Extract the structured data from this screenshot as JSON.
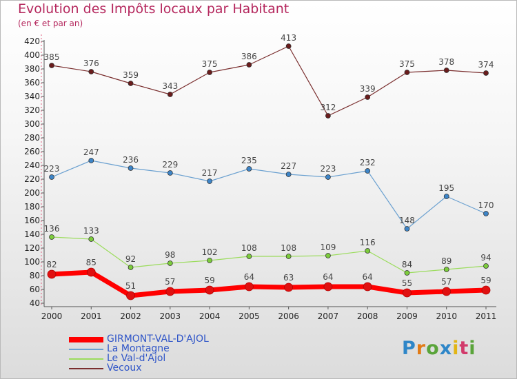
{
  "title": "Evolution des Impôts locaux par Habitant",
  "subtitle": "(en € et par an)",
  "logo": {
    "text": "Proxiti",
    "letters": [
      "P",
      "r",
      "o",
      "x",
      "i",
      "t",
      "i"
    ]
  },
  "chart_data": {
    "type": "line",
    "x": [
      "2000",
      "2001",
      "2002",
      "2003",
      "2004",
      "2005",
      "2006",
      "2007",
      "2008",
      "2009",
      "2010",
      "2011"
    ],
    "ylim": [
      40,
      420
    ],
    "yticks": [
      40,
      60,
      80,
      100,
      120,
      140,
      160,
      180,
      200,
      220,
      240,
      260,
      280,
      300,
      320,
      340,
      360,
      380,
      400,
      420
    ],
    "grid": false,
    "legend_position": "bottom-left",
    "series": [
      {
        "name": "GIRMONT-VAL-D'AJOL",
        "color": "#ff0000",
        "point_color": "#e01010",
        "width": 7,
        "values": [
          82,
          85,
          51,
          57,
          59,
          64,
          63,
          64,
          64,
          55,
          57,
          59
        ]
      },
      {
        "name": "La Montagne",
        "color": "#6aa0d0",
        "point_color": "#3d85c8",
        "width": 1.2,
        "values": [
          223,
          247,
          236,
          229,
          217,
          235,
          227,
          223,
          232,
          148,
          195,
          170
        ]
      },
      {
        "name": "Le Val-d'Ajol",
        "color": "#9bdc5c",
        "point_color": "#7ccc3c",
        "width": 1.2,
        "values": [
          136,
          133,
          92,
          98,
          102,
          108,
          108,
          109,
          116,
          84,
          89,
          94
        ]
      },
      {
        "name": "Vecoux",
        "color": "#7a2e2e",
        "point_color": "#6a1c1c",
        "width": 1.2,
        "values": [
          385,
          376,
          359,
          343,
          375,
          386,
          413,
          312,
          339,
          375,
          378,
          374
        ]
      }
    ]
  }
}
